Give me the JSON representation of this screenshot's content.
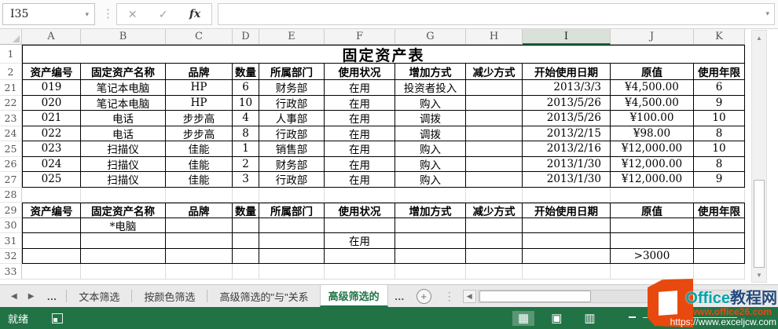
{
  "formula_bar": {
    "name_box_value": "I35",
    "formula_value": ""
  },
  "icons": {
    "name_box_dropdown": "▾",
    "cancel": "✕",
    "enter": "✓",
    "insert_function": "fx",
    "formula_expand": "▾",
    "separator_dots": "⋮",
    "scroll_up": "▲",
    "scroll_down": "▼",
    "scroll_left": "◀",
    "tab_nav_left": "◀",
    "tab_nav_right": "▶",
    "tab_overflow": "…",
    "add_sheet": "+",
    "normal_view": "▦",
    "page_layout_view": "▣",
    "page_break_view": "▥"
  },
  "grid": {
    "columns": [
      "A",
      "B",
      "C",
      "D",
      "E",
      "F",
      "G",
      "H",
      "I",
      "J",
      "K"
    ],
    "selected_column": "I",
    "rows": [
      {
        "n": "1",
        "type": "title"
      },
      {
        "n": "2",
        "type": "header"
      },
      {
        "n": "21",
        "type": "data",
        "cells": [
          "019",
          "笔记本电脑",
          "HP",
          "6",
          "财务部",
          "在用",
          "投资者投入",
          "",
          "2013/3/3",
          "¥4,500.00",
          "6"
        ]
      },
      {
        "n": "22",
        "type": "data",
        "cells": [
          "020",
          "笔记本电脑",
          "HP",
          "10",
          "行政部",
          "在用",
          "购入",
          "",
          "2013/5/26",
          "¥4,500.00",
          "9"
        ]
      },
      {
        "n": "23",
        "type": "data",
        "cells": [
          "021",
          "电话",
          "步步高",
          "4",
          "人事部",
          "在用",
          "调拨",
          "",
          "2013/5/26",
          "¥100.00",
          "10"
        ]
      },
      {
        "n": "24",
        "type": "data",
        "cells": [
          "022",
          "电话",
          "步步高",
          "8",
          "行政部",
          "在用",
          "调拨",
          "",
          "2013/2/15",
          "¥98.00",
          "8"
        ]
      },
      {
        "n": "25",
        "type": "data",
        "cells": [
          "023",
          "扫描仪",
          "佳能",
          "1",
          "销售部",
          "在用",
          "购入",
          "",
          "2013/2/16",
          "¥12,000.00",
          "10"
        ]
      },
      {
        "n": "26",
        "type": "data",
        "cells": [
          "024",
          "扫描仪",
          "佳能",
          "2",
          "财务部",
          "在用",
          "购入",
          "",
          "2013/1/30",
          "¥12,000.00",
          "8"
        ]
      },
      {
        "n": "27",
        "type": "data",
        "cells": [
          "025",
          "扫描仪",
          "佳能",
          "3",
          "行政部",
          "在用",
          "购入",
          "",
          "2013/1/30",
          "¥12,000.00",
          "9"
        ]
      },
      {
        "n": "28",
        "type": "empty"
      },
      {
        "n": "29",
        "type": "header2"
      },
      {
        "n": "30",
        "type": "data",
        "cells": [
          "",
          "*电脑",
          "",
          "",
          "",
          "",
          "",
          "",
          "",
          "",
          ""
        ]
      },
      {
        "n": "31",
        "type": "data",
        "cells": [
          "",
          "",
          "",
          "",
          "",
          "在用",
          "",
          "",
          "",
          "",
          ""
        ]
      },
      {
        "n": "32",
        "type": "data",
        "cells": [
          "",
          "",
          "",
          "",
          "",
          "",
          "",
          "",
          "",
          ">3000",
          ""
        ]
      },
      {
        "n": "33",
        "type": "empty"
      }
    ]
  },
  "sheet": {
    "title": "固定资产表",
    "header": [
      "资产编号",
      "固定资产名称",
      "品牌",
      "数量",
      "所属部门",
      "使用状况",
      "增加方式",
      "减少方式",
      "开始使用日期",
      "原值",
      "使用年限"
    ]
  },
  "tab_bar": {
    "tabs": [
      {
        "label": "文本筛选",
        "active": false
      },
      {
        "label": "按颜色筛选",
        "active": false
      },
      {
        "label": "高级筛选的\"与\"关系",
        "active": false
      },
      {
        "label": "高级筛选的",
        "active": true
      }
    ]
  },
  "status_bar": {
    "ready_label": "就绪"
  },
  "watermark": {
    "brand": "Office",
    "brand_suffix": "教程网",
    "site1": "www.office26.com",
    "site2": "https://www.exceljcw.com"
  },
  "colors": {
    "excel_green": "#217346",
    "selected_header_bg": "#d9e1d9",
    "watermark_orange": "#e8490f",
    "watermark_teal": "#00a3a8",
    "watermark_navy": "#254a7d"
  }
}
